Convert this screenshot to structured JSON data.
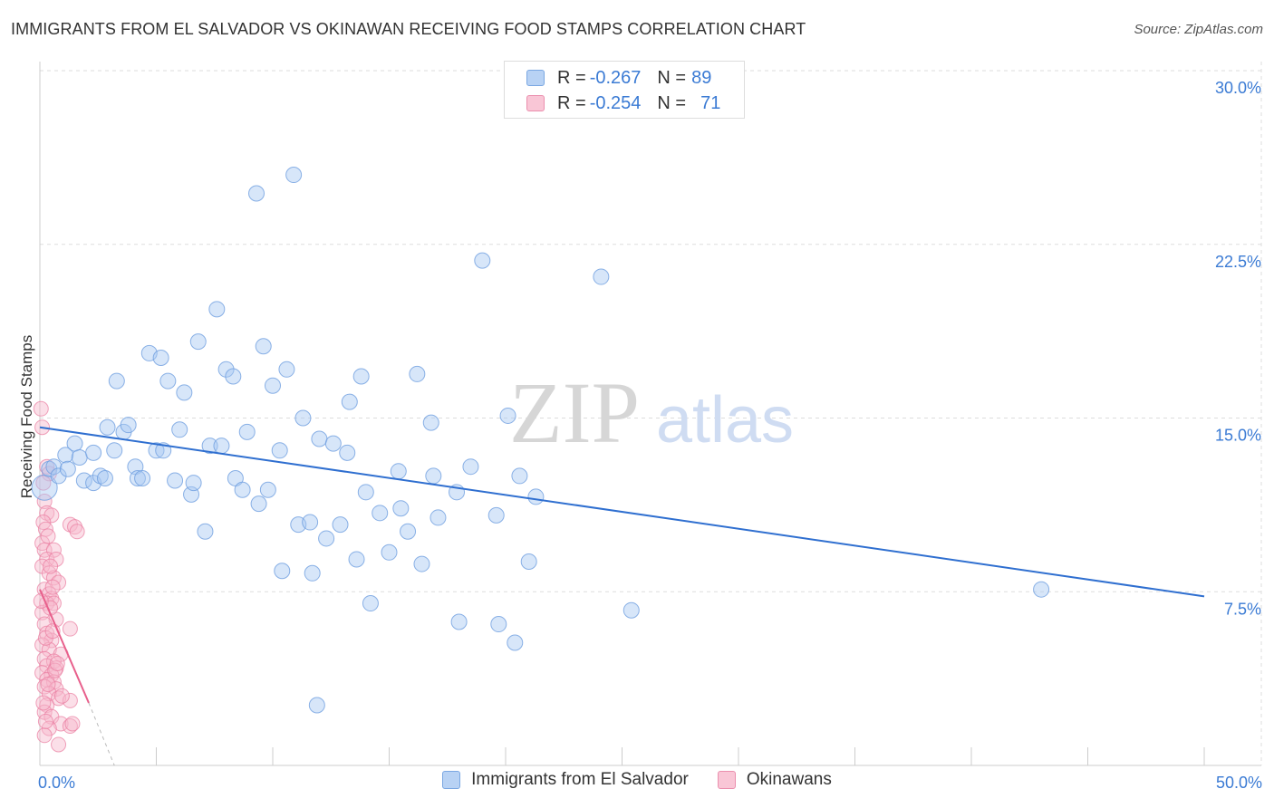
{
  "header": {
    "title": "IMMIGRANTS FROM EL SALVADOR VS OKINAWAN RECEIVING FOOD STAMPS CORRELATION CHART",
    "source": "Source: ZipAtlas.com"
  },
  "stats": [
    {
      "r_label": "R = ",
      "r_value": "-0.267",
      "n_label": "N = ",
      "n_value": "89"
    },
    {
      "r_label": "R = ",
      "r_value": "-0.254",
      "n_label": "N = ",
      "n_value": "71"
    }
  ],
  "watermark": {
    "left": "ZIP",
    "right": "atlas"
  },
  "colors": {
    "blue_fill": "#a7c8f2",
    "blue_stroke": "#6f9fe0",
    "blue_line": "#2f6fd0",
    "pink_fill": "#f7b8cd",
    "pink_stroke": "#ea7ca0",
    "pink_line": "#e8608c",
    "axis_text": "#3b7bd4",
    "grid": "#dddddd"
  },
  "chart_data": {
    "type": "scatter",
    "title": "IMMIGRANTS FROM EL SALVADOR VS OKINAWAN RECEIVING FOOD STAMPS CORRELATION CHART",
    "xlabel": "",
    "ylabel": "Receiving Food Stamps",
    "xlim": [
      0,
      50
    ],
    "ylim": [
      0,
      30
    ],
    "x_tick_labels": [
      {
        "value": 0,
        "label": "0.0%"
      },
      {
        "value": 50,
        "label": "50.0%"
      }
    ],
    "y_tick_labels": [
      {
        "value": 7.5,
        "label": "7.5%"
      },
      {
        "value": 15,
        "label": "15.0%"
      },
      {
        "value": 22.5,
        "label": "22.5%"
      },
      {
        "value": 30,
        "label": "30.0%"
      }
    ],
    "grid": true,
    "legend_position": "bottom-center",
    "series": [
      {
        "name": "Immigrants from El Salvador",
        "color": "blue",
        "trend": {
          "x": [
            0,
            50
          ],
          "y": [
            14.6,
            7.3
          ],
          "dashed_extension": false
        },
        "points": [
          {
            "x": 0.2,
            "y": 12.0,
            "big": true
          },
          {
            "x": 0.4,
            "y": 12.8
          },
          {
            "x": 0.6,
            "y": 12.9
          },
          {
            "x": 0.8,
            "y": 12.5
          },
          {
            "x": 1.1,
            "y": 13.4
          },
          {
            "x": 1.2,
            "y": 12.8
          },
          {
            "x": 1.5,
            "y": 13.9
          },
          {
            "x": 1.7,
            "y": 13.3
          },
          {
            "x": 1.9,
            "y": 12.3
          },
          {
            "x": 2.3,
            "y": 13.5
          },
          {
            "x": 2.3,
            "y": 12.2
          },
          {
            "x": 2.6,
            "y": 12.5
          },
          {
            "x": 2.8,
            "y": 12.4
          },
          {
            "x": 2.9,
            "y": 14.6
          },
          {
            "x": 3.2,
            "y": 13.6
          },
          {
            "x": 3.3,
            "y": 16.6
          },
          {
            "x": 3.6,
            "y": 14.4
          },
          {
            "x": 3.8,
            "y": 14.7
          },
          {
            "x": 4.1,
            "y": 12.9
          },
          {
            "x": 4.2,
            "y": 12.4
          },
          {
            "x": 4.4,
            "y": 12.4
          },
          {
            "x": 4.7,
            "y": 17.8
          },
          {
            "x": 5.0,
            "y": 13.6
          },
          {
            "x": 5.2,
            "y": 17.6
          },
          {
            "x": 5.3,
            "y": 13.6
          },
          {
            "x": 5.5,
            "y": 16.6
          },
          {
            "x": 5.8,
            "y": 12.3
          },
          {
            "x": 6.0,
            "y": 14.5
          },
          {
            "x": 6.2,
            "y": 16.1
          },
          {
            "x": 6.5,
            "y": 11.7
          },
          {
            "x": 6.6,
            "y": 12.2
          },
          {
            "x": 6.8,
            "y": 18.3
          },
          {
            "x": 7.1,
            "y": 10.1
          },
          {
            "x": 7.3,
            "y": 13.8
          },
          {
            "x": 7.6,
            "y": 19.7
          },
          {
            "x": 7.8,
            "y": 13.8
          },
          {
            "x": 8.0,
            "y": 17.1
          },
          {
            "x": 8.3,
            "y": 16.8
          },
          {
            "x": 8.4,
            "y": 12.4
          },
          {
            "x": 8.7,
            "y": 11.9
          },
          {
            "x": 8.9,
            "y": 14.4
          },
          {
            "x": 9.3,
            "y": 24.7
          },
          {
            "x": 9.4,
            "y": 11.3
          },
          {
            "x": 9.6,
            "y": 18.1
          },
          {
            "x": 9.8,
            "y": 11.9
          },
          {
            "x": 10.0,
            "y": 16.4
          },
          {
            "x": 10.3,
            "y": 13.6
          },
          {
            "x": 10.4,
            "y": 8.4
          },
          {
            "x": 10.6,
            "y": 17.1
          },
          {
            "x": 10.9,
            "y": 25.5
          },
          {
            "x": 11.1,
            "y": 10.4
          },
          {
            "x": 11.3,
            "y": 15.0
          },
          {
            "x": 11.6,
            "y": 10.5
          },
          {
            "x": 11.7,
            "y": 8.3
          },
          {
            "x": 11.9,
            "y": 2.6
          },
          {
            "x": 12.0,
            "y": 14.1
          },
          {
            "x": 12.3,
            "y": 9.8
          },
          {
            "x": 12.6,
            "y": 13.9
          },
          {
            "x": 12.9,
            "y": 10.4
          },
          {
            "x": 13.2,
            "y": 13.5
          },
          {
            "x": 13.3,
            "y": 15.7
          },
          {
            "x": 13.6,
            "y": 8.9
          },
          {
            "x": 13.8,
            "y": 16.8
          },
          {
            "x": 14.0,
            "y": 11.8
          },
          {
            "x": 14.2,
            "y": 7.0
          },
          {
            "x": 14.6,
            "y": 10.9
          },
          {
            "x": 15.0,
            "y": 9.2
          },
          {
            "x": 15.4,
            "y": 12.7
          },
          {
            "x": 15.5,
            "y": 11.1
          },
          {
            "x": 15.8,
            "y": 10.1
          },
          {
            "x": 16.2,
            "y": 16.9
          },
          {
            "x": 16.4,
            "y": 8.7
          },
          {
            "x": 16.8,
            "y": 14.8
          },
          {
            "x": 16.9,
            "y": 12.5
          },
          {
            "x": 17.1,
            "y": 10.7
          },
          {
            "x": 17.9,
            "y": 11.8
          },
          {
            "x": 18.0,
            "y": 6.2
          },
          {
            "x": 18.5,
            "y": 12.9
          },
          {
            "x": 19.0,
            "y": 21.8
          },
          {
            "x": 19.6,
            "y": 10.8
          },
          {
            "x": 19.7,
            "y": 6.1
          },
          {
            "x": 20.1,
            "y": 15.1
          },
          {
            "x": 20.4,
            "y": 5.3
          },
          {
            "x": 20.6,
            "y": 12.5
          },
          {
            "x": 21.0,
            "y": 8.8
          },
          {
            "x": 21.3,
            "y": 11.6
          },
          {
            "x": 24.1,
            "y": 21.1
          },
          {
            "x": 25.4,
            "y": 6.7
          },
          {
            "x": 43.0,
            "y": 7.6
          }
        ]
      },
      {
        "name": "Okinawans",
        "color": "pink",
        "trend": {
          "x": [
            0,
            2.1
          ],
          "y": [
            7.6,
            2.7
          ],
          "dashed_extension": true,
          "dash_to": [
            3.2,
            0
          ]
        },
        "points": [
          {
            "x": 0.05,
            "y": 15.4
          },
          {
            "x": 0.1,
            "y": 14.6
          },
          {
            "x": 0.3,
            "y": 12.9
          },
          {
            "x": 0.4,
            "y": 12.6
          },
          {
            "x": 0.2,
            "y": 11.4
          },
          {
            "x": 0.3,
            "y": 10.9
          },
          {
            "x": 0.5,
            "y": 10.8
          },
          {
            "x": 0.15,
            "y": 10.5
          },
          {
            "x": 0.25,
            "y": 10.2
          },
          {
            "x": 1.3,
            "y": 10.4
          },
          {
            "x": 1.5,
            "y": 10.3
          },
          {
            "x": 1.6,
            "y": 10.1
          },
          {
            "x": 0.1,
            "y": 9.6
          },
          {
            "x": 0.2,
            "y": 9.3
          },
          {
            "x": 0.6,
            "y": 9.3
          },
          {
            "x": 0.3,
            "y": 8.9
          },
          {
            "x": 0.7,
            "y": 8.9
          },
          {
            "x": 0.1,
            "y": 8.6
          },
          {
            "x": 0.4,
            "y": 8.3
          },
          {
            "x": 0.6,
            "y": 8.1
          },
          {
            "x": 0.8,
            "y": 7.9
          },
          {
            "x": 0.2,
            "y": 7.6
          },
          {
            "x": 0.4,
            "y": 7.4
          },
          {
            "x": 0.5,
            "y": 7.2
          },
          {
            "x": 0.3,
            "y": 7.0
          },
          {
            "x": 0.6,
            "y": 7.0
          },
          {
            "x": 0.1,
            "y": 6.6
          },
          {
            "x": 0.7,
            "y": 6.3
          },
          {
            "x": 0.2,
            "y": 6.1
          },
          {
            "x": 1.3,
            "y": 5.9
          },
          {
            "x": 0.3,
            "y": 5.7
          },
          {
            "x": 0.5,
            "y": 5.4
          },
          {
            "x": 0.1,
            "y": 5.2
          },
          {
            "x": 0.4,
            "y": 5.0
          },
          {
            "x": 0.9,
            "y": 4.8
          },
          {
            "x": 0.2,
            "y": 4.6
          },
          {
            "x": 0.6,
            "y": 4.5
          },
          {
            "x": 0.3,
            "y": 4.3
          },
          {
            "x": 0.7,
            "y": 4.2
          },
          {
            "x": 0.1,
            "y": 4.0
          },
          {
            "x": 0.5,
            "y": 3.9
          },
          {
            "x": 0.3,
            "y": 3.7
          },
          {
            "x": 0.6,
            "y": 3.6
          },
          {
            "x": 0.2,
            "y": 3.4
          },
          {
            "x": 0.7,
            "y": 3.3
          },
          {
            "x": 0.4,
            "y": 3.1
          },
          {
            "x": 0.8,
            "y": 2.9
          },
          {
            "x": 1.3,
            "y": 2.8
          },
          {
            "x": 0.3,
            "y": 2.6
          },
          {
            "x": 0.2,
            "y": 2.3
          },
          {
            "x": 0.5,
            "y": 2.1
          },
          {
            "x": 0.9,
            "y": 1.8
          },
          {
            "x": 1.3,
            "y": 1.7
          },
          {
            "x": 1.4,
            "y": 1.8
          },
          {
            "x": 0.4,
            "y": 1.6
          },
          {
            "x": 0.2,
            "y": 1.3
          },
          {
            "x": 0.8,
            "y": 0.9
          },
          {
            "x": 0.15,
            "y": 12.2
          },
          {
            "x": 0.35,
            "y": 9.9
          },
          {
            "x": 0.55,
            "y": 7.7
          },
          {
            "x": 0.45,
            "y": 6.8
          },
          {
            "x": 0.25,
            "y": 5.5
          },
          {
            "x": 0.65,
            "y": 4.1
          },
          {
            "x": 0.35,
            "y": 3.5
          },
          {
            "x": 0.15,
            "y": 2.7
          },
          {
            "x": 0.45,
            "y": 8.6
          },
          {
            "x": 0.05,
            "y": 7.1
          },
          {
            "x": 0.55,
            "y": 5.8
          },
          {
            "x": 0.75,
            "y": 4.4
          },
          {
            "x": 0.25,
            "y": 1.9
          },
          {
            "x": 0.95,
            "y": 3.0
          }
        ]
      }
    ]
  }
}
